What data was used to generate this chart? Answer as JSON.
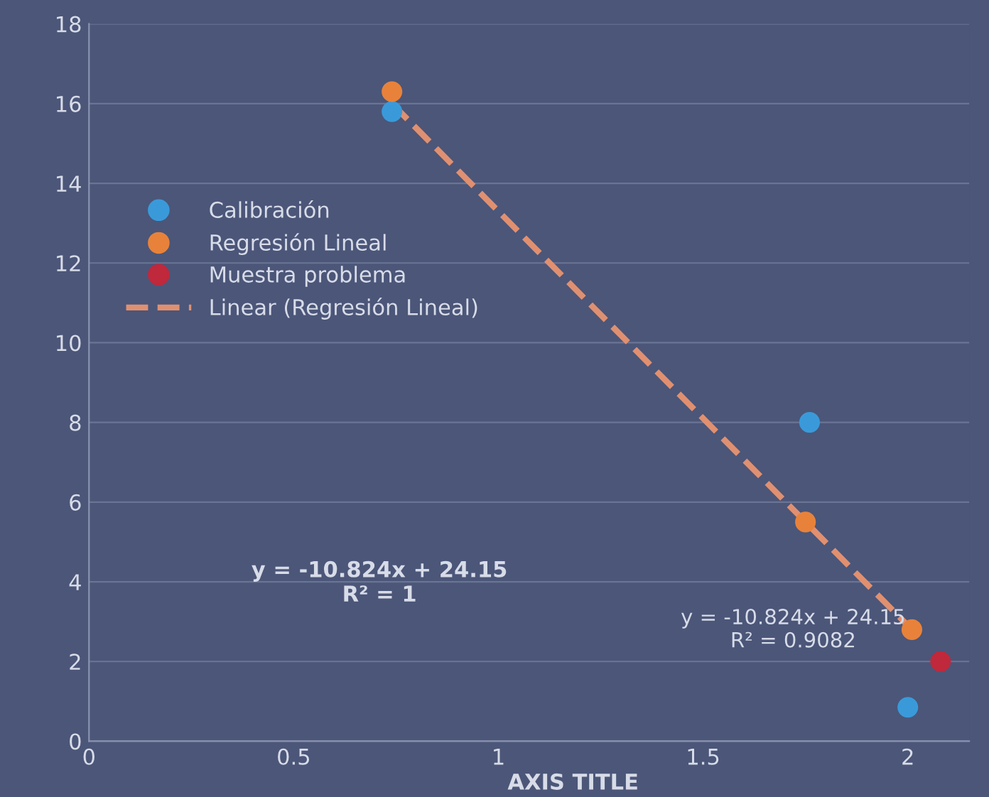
{
  "chart_data": {
    "type": "scatter",
    "xlabel": "AXIS TITLE",
    "xlim": [
      0,
      2.15
    ],
    "xticks": [
      0,
      0.5,
      1,
      1.5,
      2
    ],
    "ylim": [
      0,
      18
    ],
    "yticks": [
      0,
      2,
      4,
      6,
      8,
      10,
      12,
      14,
      16,
      18
    ],
    "grid": "y",
    "legend": "left",
    "series": [
      {
        "name": "Calibración",
        "color": "#3a9ad9",
        "marker": "circle",
        "x": [
          0.74,
          1.76,
          2.0
        ],
        "values": [
          15.8,
          8.0,
          0.85
        ]
      },
      {
        "name": "Regresión Lineal",
        "color": "#e8823a",
        "marker": "circle",
        "x": [
          0.74,
          1.75,
          2.01
        ],
        "values": [
          16.3,
          5.5,
          2.8
        ]
      },
      {
        "name": "Muestra problema",
        "color": "#c0283c",
        "marker": "circle",
        "x": [
          2.08
        ],
        "values": [
          2.0
        ]
      },
      {
        "name": "Linear (Regresión Lineal)",
        "type": "line",
        "line_style": "dashed",
        "marker": "none",
        "color": "#e09070",
        "x": [
          0.74,
          2.01
        ],
        "values": [
          16.0,
          2.8
        ]
      }
    ],
    "annotations": [
      "y = -10.824x + 24.15\nR² = 1",
      "y = -10.824x + 24.15\nR² = 0.9082"
    ]
  }
}
